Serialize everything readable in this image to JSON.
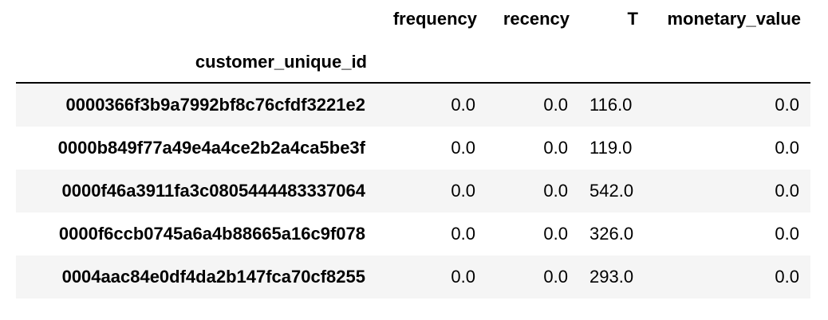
{
  "table": {
    "columns": [
      "frequency",
      "recency",
      "T",
      "monetary_value"
    ],
    "index_name": "customer_unique_id",
    "rows": [
      {
        "customer_unique_id": "0000366f3b9a7992bf8c76cfdf3221e2",
        "frequency": "0.0",
        "recency": "0.0",
        "T": "116.0",
        "monetary_value": "0.0"
      },
      {
        "customer_unique_id": "0000b849f77a49e4a4ce2b2a4ca5be3f",
        "frequency": "0.0",
        "recency": "0.0",
        "T": "119.0",
        "monetary_value": "0.0"
      },
      {
        "customer_unique_id": "0000f46a3911fa3c0805444483337064",
        "frequency": "0.0",
        "recency": "0.0",
        "T": "542.0",
        "monetary_value": "0.0"
      },
      {
        "customer_unique_id": "0000f6ccb0745a6a4b88665a16c9f078",
        "frequency": "0.0",
        "recency": "0.0",
        "T": "326.0",
        "monetary_value": "0.0"
      },
      {
        "customer_unique_id": "0004aac84e0df4da2b147fca70cf8255",
        "frequency": "0.0",
        "recency": "0.0",
        "T": "293.0",
        "monetary_value": "0.0"
      }
    ]
  },
  "colors": {
    "row_stripe": "#f5f5f5",
    "text": "#000000"
  }
}
